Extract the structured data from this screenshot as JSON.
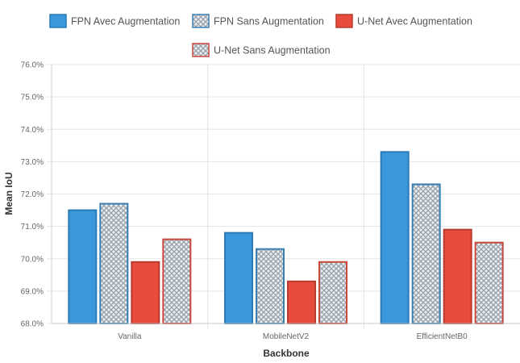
{
  "chart_data": {
    "type": "bar",
    "categories": [
      "Vanilla",
      "MobileNetV2",
      "EfficientNetB0"
    ],
    "series": [
      {
        "name": "FPN Avec Augmentation",
        "values": [
          71.5,
          70.8,
          73.3
        ],
        "color": "#3a97d9",
        "border": "#2a7ab8",
        "pattern": false
      },
      {
        "name": "FPN Sans Augmentation",
        "values": [
          71.7,
          70.3,
          72.3
        ],
        "color": "#3a97d9",
        "border": "#3a7fb2",
        "pattern": true
      },
      {
        "name": "U-Net Avec Augmentation",
        "values": [
          69.9,
          69.3,
          70.9
        ],
        "color": "#e74c3c",
        "border": "#b83a2f",
        "pattern": false
      },
      {
        "name": "U-Net Sans Augmentation",
        "values": [
          70.6,
          69.9,
          70.5
        ],
        "color": "#e74c3c",
        "border": "#c9473b",
        "pattern": true
      }
    ],
    "xlabel": "Backbone",
    "ylabel": "Mean IoU",
    "ylim": [
      68,
      76
    ],
    "yticks": [
      "68.0%",
      "69.0%",
      "70.0%",
      "71.0%",
      "72.0%",
      "73.0%",
      "74.0%",
      "75.0%",
      "76.0%"
    ],
    "grid": true,
    "legend_position": "top"
  }
}
